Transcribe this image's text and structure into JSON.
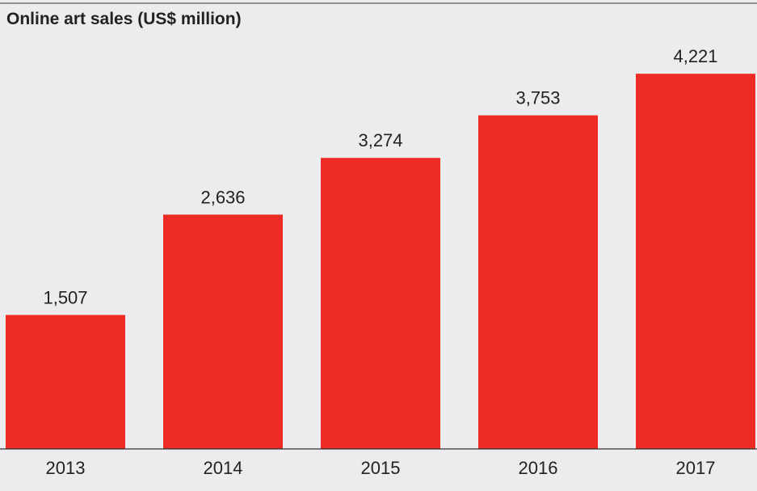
{
  "chart_data": {
    "type": "bar",
    "title": "Online art sales (US$ million)",
    "categories": [
      "2013",
      "2014",
      "2015",
      "2016",
      "2017"
    ],
    "values": [
      1507,
      2636,
      3274,
      3753,
      4221
    ],
    "value_labels": [
      "1,507",
      "2,636",
      "3,274",
      "3,753",
      "4,221"
    ],
    "xlabel": "",
    "ylabel": "",
    "ylim": [
      0,
      4650
    ],
    "grid": false,
    "legend": "none",
    "colors": {
      "bar": "#ee2b24",
      "background": "#ececee",
      "text": "#222222",
      "axis_line": "#333333"
    }
  }
}
